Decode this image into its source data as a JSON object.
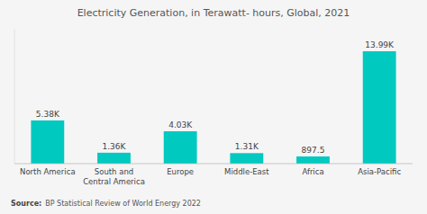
{
  "chart_data": {
    "type": "bar",
    "title": "Electricity Generation, in Terawatt- hours, Global, 2021",
    "categories": [
      "North America",
      "South and\nCentral America",
      "Europe",
      "Middle-East",
      "Africa",
      "Asia-Pacific"
    ],
    "values": [
      5380,
      1360,
      4030,
      1310,
      897.5,
      13990
    ],
    "value_labels": [
      "5.38K",
      "1.36K",
      "4.03K",
      "1.31K",
      "897.5",
      "13.99K"
    ],
    "color": "#00C9C0",
    "ylim": [
      0,
      16788
    ],
    "data_labels": true,
    "tick_labels": "x",
    "grid": false,
    "annotations": [
      "Source:",
      "BP Statistical Review of World Energy 2022"
    ]
  }
}
